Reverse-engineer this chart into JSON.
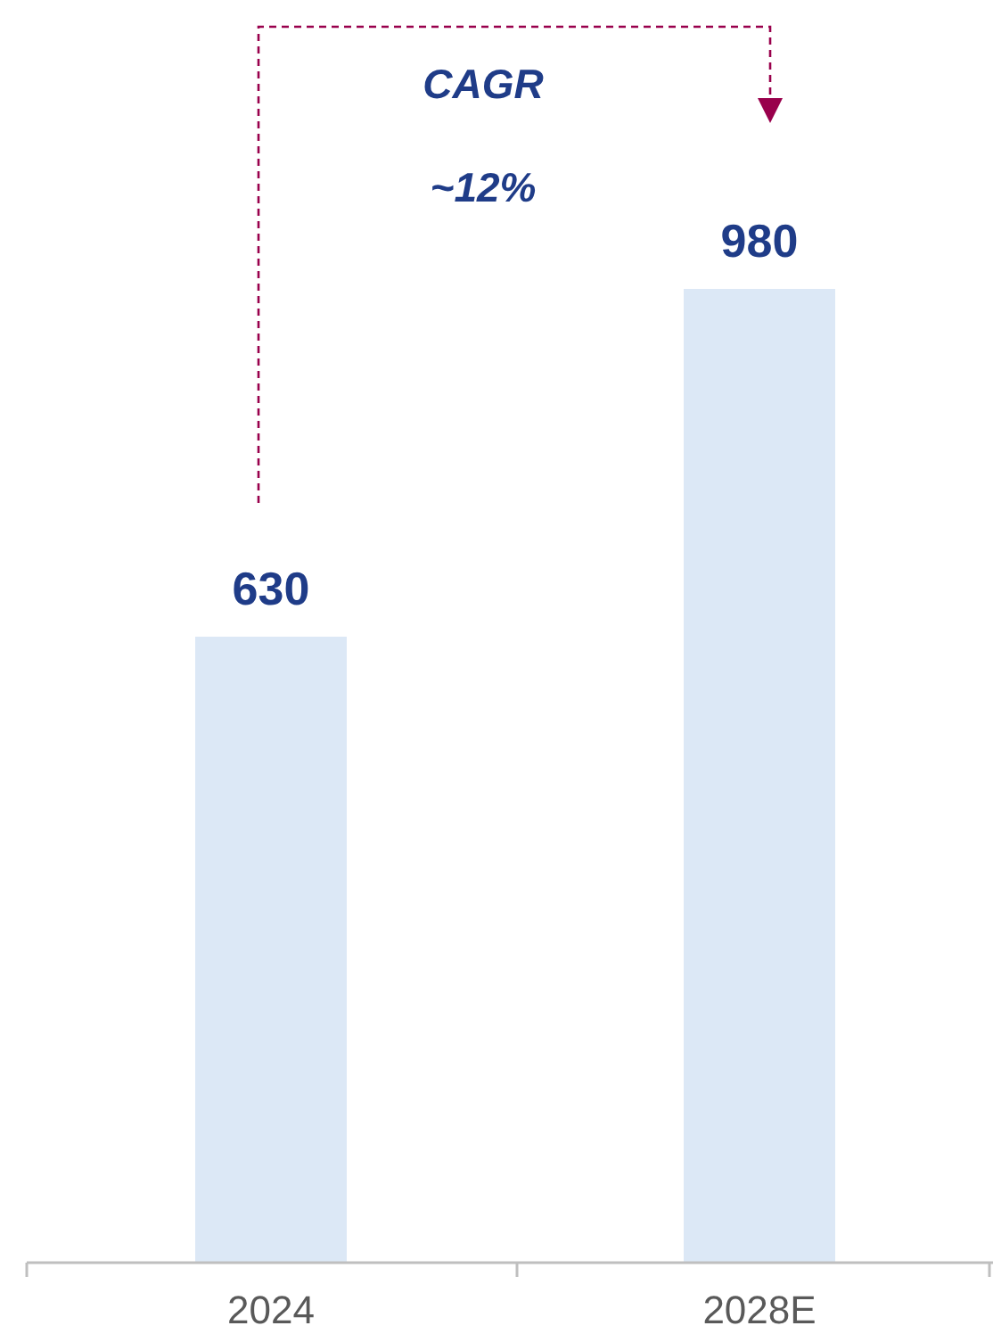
{
  "chart_data": {
    "type": "bar",
    "categories": [
      "2024",
      "2028E"
    ],
    "values": [
      630,
      980
    ],
    "color": "#dce8f6",
    "data_labels": true,
    "annotations": [
      "CAGR",
      "~12%"
    ]
  }
}
